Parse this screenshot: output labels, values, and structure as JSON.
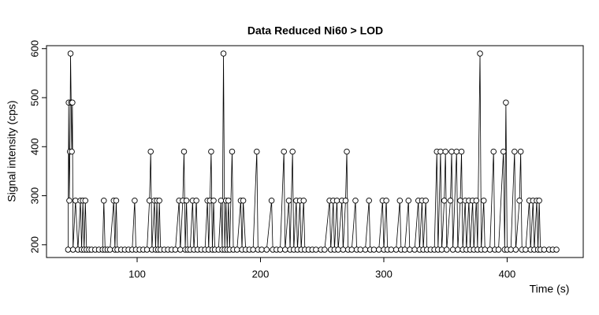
{
  "chart_data": {
    "type": "line",
    "title": "Data Reduced Ni60 > LOD",
    "x_label": "Time (s)",
    "y_label": "Signal intensity (cps)",
    "x": [
      44,
      44.5,
      45,
      45.5,
      46,
      46.5,
      47,
      47.5,
      48,
      50,
      52,
      54,
      55,
      56,
      57,
      58,
      59,
      61,
      63,
      66,
      69,
      72,
      73,
      74,
      76,
      78,
      81,
      82,
      83,
      84,
      87,
      90,
      93,
      96,
      98,
      99,
      102,
      105,
      108,
      110,
      111,
      112,
      114,
      115,
      116,
      117,
      118,
      119,
      122,
      125,
      128,
      131,
      134,
      135,
      137,
      138,
      139,
      140,
      141,
      143,
      145,
      146,
      148,
      149,
      152,
      155,
      157,
      158,
      159,
      160,
      161,
      162,
      163,
      166,
      168,
      169,
      170,
      171,
      172,
      173,
      174,
      175,
      177,
      178,
      181,
      184,
      185,
      186,
      188,
      191,
      194,
      197,
      198,
      201,
      205,
      209,
      210,
      213,
      216,
      219,
      220,
      223,
      224,
      226,
      227,
      229,
      230,
      232,
      233,
      235,
      236,
      239,
      242,
      245,
      249,
      252,
      256,
      257,
      259,
      260,
      262,
      263,
      266,
      267,
      269,
      270,
      271,
      274,
      277,
      278,
      281,
      285,
      288,
      289,
      292,
      296,
      299,
      300,
      302,
      303,
      306,
      310,
      313,
      314,
      317,
      320,
      321,
      325,
      328,
      329,
      331,
      332,
      334,
      335,
      338,
      341,
      343,
      344,
      346,
      347,
      349,
      350,
      351,
      354,
      355,
      356,
      359,
      360,
      362,
      363,
      364,
      366,
      367,
      369,
      370,
      372,
      373,
      375,
      376,
      378,
      379,
      381,
      382,
      386,
      389,
      390,
      393,
      397,
      398,
      399,
      400,
      403,
      406,
      407,
      410,
      411,
      412,
      415,
      418,
      419,
      421,
      422,
      424,
      425,
      426,
      427,
      430,
      434,
      437,
      440
    ],
    "values": [
      190,
      490,
      290,
      390,
      590,
      490,
      390,
      490,
      190,
      290,
      190,
      290,
      190,
      290,
      190,
      290,
      190,
      190,
      190,
      190,
      190,
      190,
      290,
      190,
      190,
      190,
      290,
      190,
      290,
      190,
      190,
      190,
      190,
      190,
      290,
      190,
      190,
      190,
      190,
      290,
      390,
      190,
      290,
      190,
      290,
      190,
      290,
      190,
      190,
      190,
      190,
      190,
      290,
      190,
      290,
      390,
      190,
      290,
      190,
      190,
      290,
      190,
      290,
      190,
      190,
      190,
      290,
      190,
      290,
      390,
      190,
      290,
      190,
      190,
      290,
      190,
      590,
      190,
      290,
      190,
      290,
      190,
      390,
      190,
      190,
      290,
      190,
      290,
      190,
      190,
      190,
      390,
      190,
      190,
      190,
      290,
      190,
      190,
      190,
      390,
      190,
      290,
      190,
      390,
      190,
      290,
      190,
      290,
      190,
      290,
      190,
      190,
      190,
      190,
      190,
      190,
      290,
      190,
      290,
      190,
      290,
      190,
      290,
      190,
      290,
      390,
      190,
      190,
      290,
      190,
      190,
      190,
      290,
      190,
      190,
      190,
      290,
      190,
      290,
      190,
      190,
      190,
      290,
      190,
      190,
      290,
      190,
      190,
      290,
      190,
      290,
      190,
      290,
      190,
      190,
      190,
      390,
      190,
      390,
      190,
      290,
      390,
      190,
      290,
      390,
      190,
      390,
      190,
      290,
      390,
      190,
      290,
      190,
      290,
      190,
      290,
      190,
      290,
      190,
      590,
      190,
      290,
      190,
      190,
      390,
      190,
      190,
      390,
      190,
      490,
      190,
      190,
      390,
      190,
      290,
      390,
      190,
      190,
      290,
      190,
      290,
      190,
      290,
      190,
      290,
      190,
      190,
      190,
      190,
      190
    ],
    "color": "#000000",
    "xlim": [
      26.5,
      461.7
    ],
    "xticks": [
      100,
      200,
      300,
      400
    ],
    "ylim": [
      174,
      606
    ],
    "yticks": [
      200,
      300,
      400,
      500,
      600
    ]
  }
}
